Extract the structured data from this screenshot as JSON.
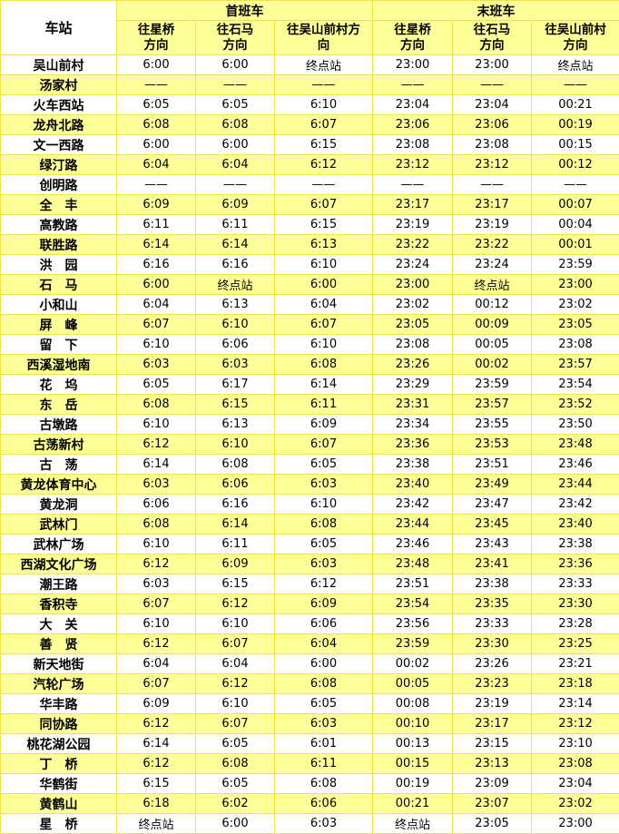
{
  "colors": {
    "cell_yellow": "#FFFF99",
    "grid_border": "#F0E24F",
    "row_white": "#FFFFFF",
    "text": "#000000"
  },
  "header": {
    "station": "车站",
    "first_train": "首班车",
    "last_train": "末班车",
    "sub_headers": [
      "往星桥\n方向",
      "往石马\n方向",
      "往吴山前村方\n向",
      "往星桥\n方向",
      "往石马\n方向",
      "往吴山前村\n方向"
    ]
  },
  "terminal_label": "终点站",
  "no_service_label": "——",
  "rows": [
    {
      "station": "吴山前村",
      "times": [
        "6:00",
        "6:00",
        "终点站",
        "23:00",
        "23:00",
        "终点站"
      ]
    },
    {
      "station": "汤家村",
      "times": [
        "——",
        "——",
        "——",
        "——",
        "——",
        "——"
      ]
    },
    {
      "station": "火车西站",
      "times": [
        "6:05",
        "6:05",
        "6:10",
        "23:04",
        "23:04",
        "00:21"
      ]
    },
    {
      "station": "龙舟北路",
      "times": [
        "6:08",
        "6:08",
        "6:07",
        "23:06",
        "23:06",
        "00:19"
      ]
    },
    {
      "station": "文一西路",
      "times": [
        "6:00",
        "6:00",
        "6:15",
        "23:08",
        "23:08",
        "00:15"
      ]
    },
    {
      "station": "绿汀路",
      "times": [
        "6:04",
        "6:04",
        "6:12",
        "23:12",
        "23:12",
        "00:12"
      ]
    },
    {
      "station": "创明路",
      "times": [
        "——",
        "——",
        "——",
        "——",
        "——",
        "——"
      ]
    },
    {
      "station": "全　丰",
      "times": [
        "6:09",
        "6:09",
        "6:07",
        "23:17",
        "23:17",
        "00:07"
      ]
    },
    {
      "station": "高教路",
      "times": [
        "6:11",
        "6:11",
        "6:15",
        "23:19",
        "23:19",
        "00:04"
      ]
    },
    {
      "station": "联胜路",
      "times": [
        "6:14",
        "6:14",
        "6:13",
        "23:22",
        "23:22",
        "00:01"
      ]
    },
    {
      "station": "洪　园",
      "times": [
        "6:16",
        "6:16",
        "6:10",
        "23:24",
        "23:24",
        "23:59"
      ]
    },
    {
      "station": "石　马",
      "times": [
        "6:00",
        "终点站",
        "6:00",
        "23:00",
        "终点站",
        "23:00"
      ]
    },
    {
      "station": "小和山",
      "times": [
        "6:04",
        "6:13",
        "6:04",
        "23:02",
        "00:12",
        "23:02"
      ]
    },
    {
      "station": "屏　峰",
      "times": [
        "6:07",
        "6:10",
        "6:07",
        "23:05",
        "00:09",
        "23:05"
      ]
    },
    {
      "station": "留　下",
      "times": [
        "6:10",
        "6:06",
        "6:10",
        "23:08",
        "00:05",
        "23:08"
      ]
    },
    {
      "station": "西溪湿地南",
      "times": [
        "6:03",
        "6:03",
        "6:08",
        "23:26",
        "00:02",
        "23:57"
      ]
    },
    {
      "station": "花　坞",
      "times": [
        "6:05",
        "6:17",
        "6:14",
        "23:29",
        "23:59",
        "23:54"
      ]
    },
    {
      "station": "东　岳",
      "times": [
        "6:08",
        "6:15",
        "6:11",
        "23:31",
        "23:57",
        "23:52"
      ]
    },
    {
      "station": "古墩路",
      "times": [
        "6:10",
        "6:13",
        "6:09",
        "23:34",
        "23:55",
        "23:50"
      ]
    },
    {
      "station": "古荡新村",
      "times": [
        "6:12",
        "6:10",
        "6:07",
        "23:36",
        "23:53",
        "23:48"
      ]
    },
    {
      "station": "古　荡",
      "times": [
        "6:14",
        "6:08",
        "6:05",
        "23:38",
        "23:51",
        "23:46"
      ]
    },
    {
      "station": "黄龙体育中心",
      "times": [
        "6:03",
        "6:06",
        "6:03",
        "23:40",
        "23:49",
        "23:44"
      ]
    },
    {
      "station": "黄龙洞",
      "times": [
        "6:06",
        "6:16",
        "6:10",
        "23:42",
        "23:47",
        "23:42"
      ]
    },
    {
      "station": "武林门",
      "times": [
        "6:08",
        "6:14",
        "6:08",
        "23:44",
        "23:45",
        "23:40"
      ]
    },
    {
      "station": "武林广场",
      "times": [
        "6:10",
        "6:11",
        "6:05",
        "23:46",
        "23:43",
        "23:38"
      ]
    },
    {
      "station": "西湖文化广场",
      "times": [
        "6:12",
        "6:09",
        "6:03",
        "23:48",
        "23:41",
        "23:36"
      ]
    },
    {
      "station": "潮王路",
      "times": [
        "6:03",
        "6:15",
        "6:12",
        "23:51",
        "23:38",
        "23:33"
      ]
    },
    {
      "station": "香积寺",
      "times": [
        "6:07",
        "6:12",
        "6:09",
        "23:54",
        "23:35",
        "23:30"
      ]
    },
    {
      "station": "大　关",
      "times": [
        "6:10",
        "6:10",
        "6:06",
        "23:56",
        "23:33",
        "23:28"
      ]
    },
    {
      "station": "善　贤",
      "times": [
        "6:12",
        "6:07",
        "6:04",
        "23:59",
        "23:30",
        "23:25"
      ]
    },
    {
      "station": "新天地街",
      "times": [
        "6:04",
        "6:04",
        "6:00",
        "00:02",
        "23:26",
        "23:21"
      ]
    },
    {
      "station": "汽轮广场",
      "times": [
        "6:07",
        "6:12",
        "6:08",
        "00:05",
        "23:23",
        "23:18"
      ]
    },
    {
      "station": "华丰路",
      "times": [
        "6:09",
        "6:10",
        "6:05",
        "00:08",
        "23:19",
        "23:14"
      ]
    },
    {
      "station": "同协路",
      "times": [
        "6:12",
        "6:07",
        "6:03",
        "00:10",
        "23:17",
        "23:12"
      ]
    },
    {
      "station": "桃花湖公园",
      "times": [
        "6:14",
        "6:05",
        "6:01",
        "00:13",
        "23:15",
        "23:10"
      ]
    },
    {
      "station": "丁　桥",
      "times": [
        "6:12",
        "6:08",
        "6:11",
        "00:15",
        "23:13",
        "23:08"
      ]
    },
    {
      "station": "华鹤街",
      "times": [
        "6:15",
        "6:05",
        "6:08",
        "00:19",
        "23:09",
        "23:04"
      ]
    },
    {
      "station": "黄鹤山",
      "times": [
        "6:18",
        "6:02",
        "6:06",
        "00:21",
        "23:07",
        "23:02"
      ]
    },
    {
      "station": "星　桥",
      "times": [
        "终点站",
        "6:00",
        "6:03",
        "终点站",
        "23:05",
        "23:00"
      ]
    }
  ]
}
